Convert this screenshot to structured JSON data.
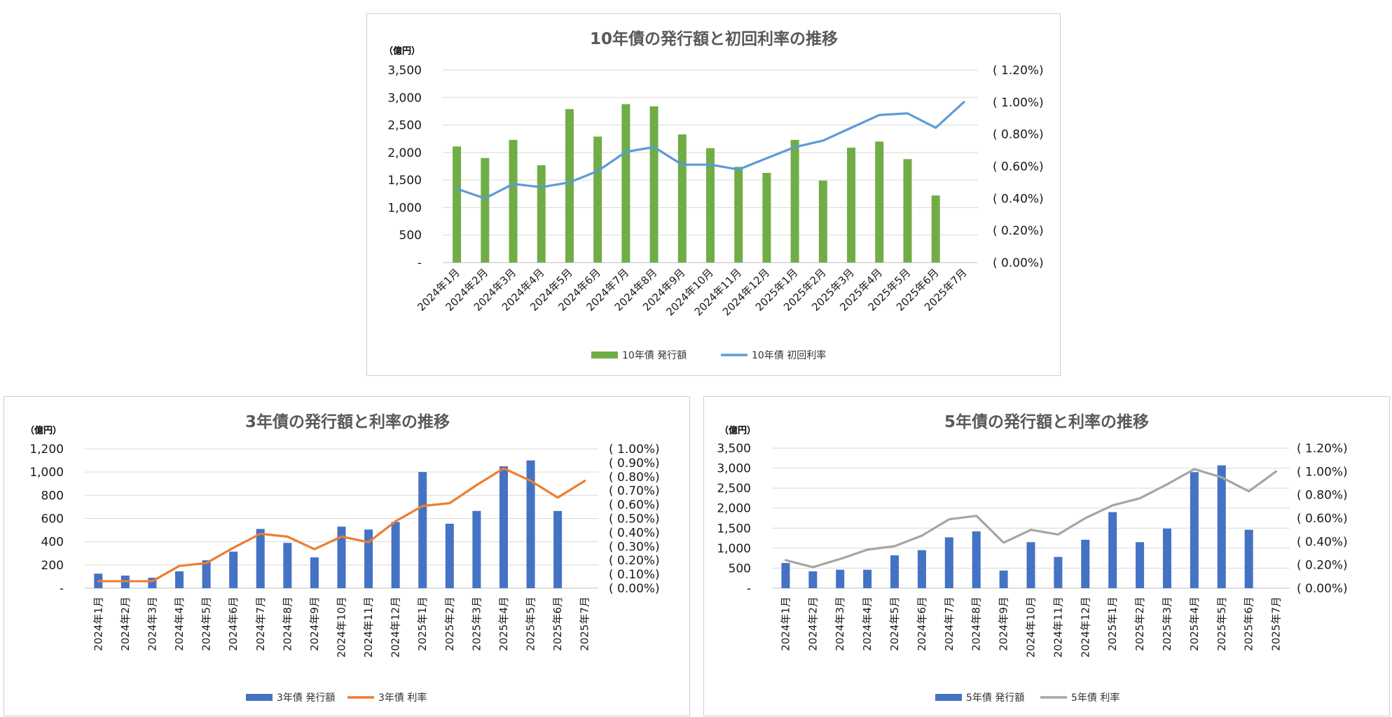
{
  "chart_data": [
    {
      "id": "c10",
      "type": "bar",
      "title": "10年債の発行額と初回利率の推移",
      "unit_label": "（億円）",
      "categories": [
        "2024年1月",
        "2024年2月",
        "2024年3月",
        "2024年4月",
        "2024年5月",
        "2024年6月",
        "2024年7月",
        "2024年8月",
        "2024年9月",
        "2024年10月",
        "2024年11月",
        "2024年12月",
        "2025年1月",
        "2025年2月",
        "2025年3月",
        "2025年4月",
        "2025年5月",
        "2025年6月",
        "2025年7月"
      ],
      "y_left": {
        "min": 0,
        "max": 3500,
        "ticks": [
          "-",
          "500",
          "1,000",
          "1,500",
          "2,000",
          "2,500",
          "3,000",
          "3,500"
        ]
      },
      "y_right": {
        "min": 0,
        "max": 1.2,
        "ticks": [
          "( 0.00%)",
          "( 0.20%)",
          "( 0.40%)",
          "( 0.60%)",
          "( 0.80%)",
          "( 1.00%)",
          "( 1.20%)"
        ]
      },
      "series": [
        {
          "name": "10年債 発行額",
          "kind": "bar",
          "axis": "left",
          "color": "#70ad47",
          "values": [
            2110,
            1900,
            2230,
            1770,
            2790,
            2290,
            2880,
            2840,
            2330,
            2080,
            1740,
            1630,
            2230,
            1490,
            2090,
            2200,
            1880,
            1220,
            null
          ]
        },
        {
          "name": "10年債 初回利率",
          "kind": "line",
          "axis": "right",
          "color": "#5b9bd5",
          "values": [
            0.46,
            0.4,
            0.49,
            0.47,
            0.5,
            0.57,
            0.69,
            0.72,
            0.61,
            0.61,
            0.58,
            0.65,
            0.72,
            0.76,
            0.84,
            0.92,
            0.93,
            0.84,
            1.0
          ]
        }
      ],
      "grid": true,
      "legend_position": "bottom"
    },
    {
      "id": "c3",
      "type": "bar",
      "title": "3年債の発行額と利率の推移",
      "unit_label": "（億円）",
      "categories": [
        "2024年1月",
        "2024年2月",
        "2024年3月",
        "2024年4月",
        "2024年5月",
        "2024年6月",
        "2024年7月",
        "2024年8月",
        "2024年9月",
        "2024年10月",
        "2024年11月",
        "2024年12月",
        "2025年1月",
        "2025年2月",
        "2025年3月",
        "2025年4月",
        "2025年5月",
        "2025年6月",
        "2025年7月"
      ],
      "y_left": {
        "min": 0,
        "max": 1200,
        "ticks": [
          "-",
          "200",
          "400",
          "600",
          "800",
          "1,000",
          "1,200"
        ]
      },
      "y_right": {
        "min": 0,
        "max": 1.0,
        "ticks": [
          "( 0.00%)",
          "( 0.10%)",
          "( 0.20%)",
          "( 0.30%)",
          "( 0.40%)",
          "( 0.50%)",
          "( 0.60%)",
          "( 0.70%)",
          "( 0.80%)",
          "( 0.90%)",
          "( 1.00%)"
        ]
      },
      "series": [
        {
          "name": "3年債 発行額",
          "kind": "bar",
          "axis": "left",
          "color": "#4472c4",
          "values": [
            125,
            108,
            90,
            145,
            240,
            315,
            510,
            390,
            265,
            530,
            505,
            570,
            1000,
            555,
            665,
            1050,
            1100,
            665,
            null
          ]
        },
        {
          "name": "3年債 利率",
          "kind": "line",
          "axis": "right",
          "color": "#ed7d31",
          "values": [
            0.05,
            0.05,
            0.05,
            0.16,
            0.18,
            0.29,
            0.39,
            0.37,
            0.28,
            0.37,
            0.33,
            0.48,
            0.59,
            0.61,
            0.74,
            0.86,
            0.77,
            0.65,
            0.77
          ]
        }
      ],
      "grid": true,
      "legend_position": "bottom"
    },
    {
      "id": "c5",
      "type": "bar",
      "title": "5年債の発行額と利率の推移",
      "unit_label": "（億円）",
      "categories": [
        "2024年1月",
        "2024年2月",
        "2024年3月",
        "2024年4月",
        "2024年5月",
        "2024年6月",
        "2024年7月",
        "2024年8月",
        "2024年9月",
        "2024年10月",
        "2024年11月",
        "2024年12月",
        "2025年1月",
        "2025年2月",
        "2025年3月",
        "2025年4月",
        "2025年5月",
        "2025年6月",
        "2025年7月"
      ],
      "y_left": {
        "min": 0,
        "max": 3500,
        "ticks": [
          "-",
          "500",
          "1,000",
          "1,500",
          "2,000",
          "2,500",
          "3,000",
          "3,500"
        ]
      },
      "y_right": {
        "min": 0,
        "max": 1.2,
        "ticks": [
          "( 0.00%)",
          "( 0.20%)",
          "( 0.40%)",
          "( 0.60%)",
          "( 0.80%)",
          "( 1.00%)",
          "( 1.20%)"
        ]
      },
      "series": [
        {
          "name": "5年債 発行額",
          "kind": "bar",
          "axis": "left",
          "color": "#4472c4",
          "values": [
            630,
            420,
            460,
            460,
            820,
            950,
            1270,
            1420,
            440,
            1150,
            780,
            1210,
            1900,
            1150,
            1490,
            2900,
            3070,
            1460,
            null
          ]
        },
        {
          "name": "5年債 利率",
          "kind": "line",
          "axis": "right",
          "color": "#a5a5a5",
          "values": [
            0.24,
            0.18,
            0.25,
            0.33,
            0.36,
            0.45,
            0.59,
            0.62,
            0.39,
            0.5,
            0.46,
            0.6,
            0.71,
            0.77,
            0.89,
            1.02,
            0.95,
            0.83,
            1.0
          ]
        }
      ],
      "grid": true,
      "legend_position": "bottom"
    }
  ]
}
